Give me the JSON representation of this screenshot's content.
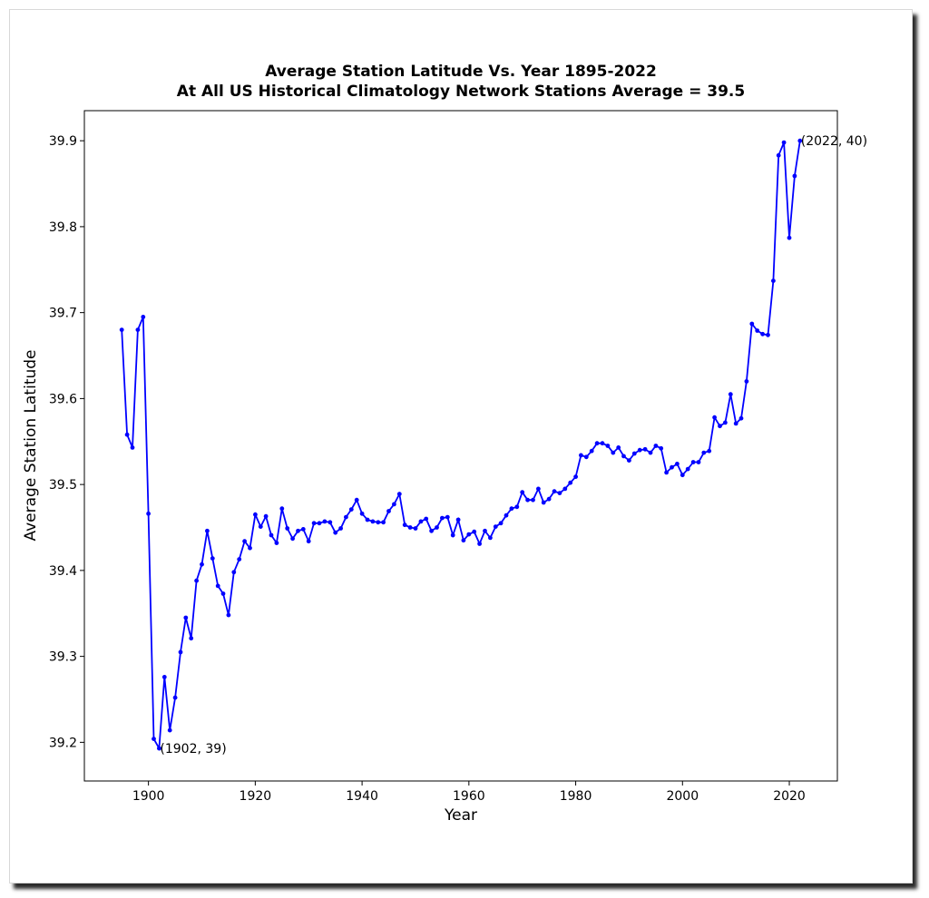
{
  "chart_data": {
    "type": "line",
    "title": "Average Station Latitude Vs. Year 1895-2022",
    "subtitle": "At All US Historical Climatology Network Stations Average = 39.5",
    "xlabel": "Year",
    "ylabel": "Average Station Latitude",
    "xlim": [
      1888,
      2029
    ],
    "ylim": [
      39.155,
      39.935
    ],
    "xticks": [
      1900,
      1920,
      1940,
      1960,
      1980,
      2000,
      2020
    ],
    "yticks": [
      39.2,
      39.3,
      39.4,
      39.5,
      39.6,
      39.7,
      39.8,
      39.9
    ],
    "grid": false,
    "line_color": "#0000ff",
    "marker": "dot",
    "x": [
      1895,
      1896,
      1897,
      1898,
      1899,
      1900,
      1901,
      1902,
      1903,
      1904,
      1905,
      1906,
      1907,
      1908,
      1909,
      1910,
      1911,
      1912,
      1913,
      1914,
      1915,
      1916,
      1917,
      1918,
      1919,
      1920,
      1921,
      1922,
      1923,
      1924,
      1925,
      1926,
      1927,
      1928,
      1929,
      1930,
      1931,
      1932,
      1933,
      1934,
      1935,
      1936,
      1937,
      1938,
      1939,
      1940,
      1941,
      1942,
      1943,
      1944,
      1945,
      1946,
      1947,
      1948,
      1949,
      1950,
      1951,
      1952,
      1953,
      1954,
      1955,
      1956,
      1957,
      1958,
      1959,
      1960,
      1961,
      1962,
      1963,
      1964,
      1965,
      1966,
      1967,
      1968,
      1969,
      1970,
      1971,
      1972,
      1973,
      1974,
      1975,
      1976,
      1977,
      1978,
      1979,
      1980,
      1981,
      1982,
      1983,
      1984,
      1985,
      1986,
      1987,
      1988,
      1989,
      1990,
      1991,
      1992,
      1993,
      1994,
      1995,
      1996,
      1997,
      1998,
      1999,
      2000,
      2001,
      2002,
      2003,
      2004,
      2005,
      2006,
      2007,
      2008,
      2009,
      2010,
      2011,
      2012,
      2013,
      2014,
      2015,
      2016,
      2017,
      2018,
      2019,
      2020,
      2021,
      2022
    ],
    "y": [
      39.68,
      39.558,
      39.543,
      39.68,
      39.695,
      39.466,
      39.204,
      39.193,
      39.276,
      39.214,
      39.252,
      39.305,
      39.345,
      39.321,
      39.388,
      39.407,
      39.446,
      39.414,
      39.382,
      39.373,
      39.348,
      39.398,
      39.413,
      39.434,
      39.426,
      39.465,
      39.451,
      39.463,
      39.441,
      39.432,
      39.472,
      39.449,
      39.437,
      39.446,
      39.448,
      39.434,
      39.455,
      39.455,
      39.457,
      39.456,
      39.444,
      39.449,
      39.462,
      39.471,
      39.482,
      39.466,
      39.459,
      39.457,
      39.456,
      39.456,
      39.469,
      39.477,
      39.489,
      39.453,
      39.45,
      39.449,
      39.457,
      39.46,
      39.446,
      39.45,
      39.461,
      39.462,
      39.441,
      39.459,
      39.435,
      39.442,
      39.445,
      39.431,
      39.446,
      39.438,
      39.451,
      39.455,
      39.464,
      39.472,
      39.474,
      39.491,
      39.482,
      39.482,
      39.495,
      39.479,
      39.483,
      39.492,
      39.49,
      39.495,
      39.502,
      39.509,
      39.534,
      39.532,
      39.539,
      39.548,
      39.548,
      39.545,
      39.537,
      39.543,
      39.533,
      39.528,
      39.536,
      39.54,
      39.541,
      39.537,
      39.545,
      39.542,
      39.514,
      39.52,
      39.524,
      39.511,
      39.518,
      39.526,
      39.526,
      39.537,
      39.539,
      39.578,
      39.568,
      39.572,
      39.605,
      39.571,
      39.577,
      39.62,
      39.687,
      39.679,
      39.675,
      39.674,
      39.737,
      39.883,
      39.898,
      39.787,
      39.859,
      39.9
    ],
    "annotations": [
      {
        "text": "(1902, 39)",
        "x": 1902,
        "y": 39.193
      },
      {
        "text": "(2022, 40)",
        "x": 2022,
        "y": 39.9
      }
    ]
  }
}
